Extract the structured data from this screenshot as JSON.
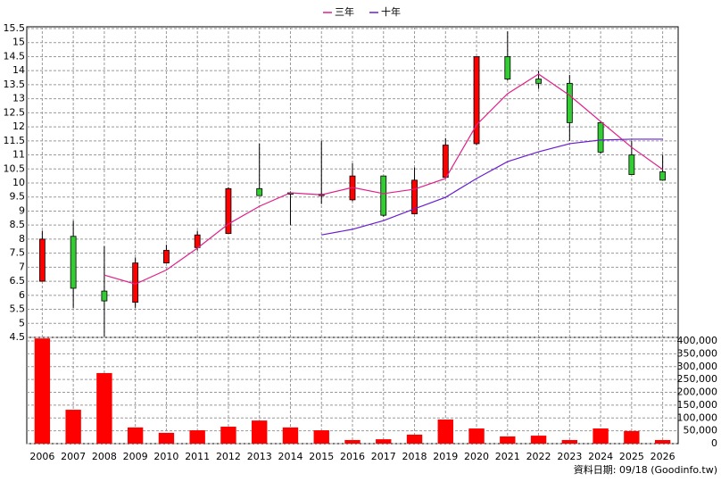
{
  "chart_data": {
    "type": "candlestick",
    "categories": [
      "2006",
      "2007",
      "2008",
      "2009",
      "2010",
      "2011",
      "2012",
      "2013",
      "2014",
      "2015",
      "2016",
      "2017",
      "2018",
      "2019",
      "2020",
      "2021",
      "2022",
      "2023",
      "2024",
      "2025",
      "2026"
    ],
    "open": [
      6.5,
      8.1,
      6.15,
      5.75,
      7.15,
      7.7,
      8.2,
      9.8,
      9.65,
      9.55,
      9.4,
      10.25,
      8.9,
      10.2,
      11.4,
      14.5,
      13.7,
      13.55,
      12.15,
      11.0,
      10.4
    ],
    "high": [
      8.3,
      8.65,
      7.75,
      7.35,
      7.8,
      8.3,
      9.85,
      11.4,
      9.7,
      11.5,
      10.7,
      10.25,
      10.55,
      11.6,
      14.5,
      15.4,
      14.0,
      13.85,
      12.2,
      11.5,
      11.0
    ],
    "low": [
      6.5,
      5.55,
      4.53,
      5.55,
      7.15,
      7.6,
      8.2,
      9.55,
      8.5,
      9.25,
      9.35,
      8.8,
      8.9,
      10.2,
      11.35,
      13.65,
      13.35,
      11.5,
      11.05,
      10.3,
      10.1
    ],
    "close": [
      8.0,
      6.25,
      5.8,
      7.15,
      7.6,
      8.15,
      9.8,
      9.55,
      9.6,
      9.6,
      10.25,
      8.85,
      10.1,
      11.35,
      14.5,
      13.7,
      13.55,
      12.15,
      11.1,
      10.3,
      10.1
    ],
    "up_color": "#ff0000",
    "down_color": "#33cc33",
    "series": [
      {
        "name": "三年",
        "color": "#e0208a",
        "values": [
          null,
          null,
          6.72,
          6.4,
          6.9,
          7.68,
          8.54,
          9.17,
          9.65,
          9.58,
          9.84,
          9.62,
          9.78,
          10.16,
          12.07,
          13.18,
          13.88,
          13.12,
          12.19,
          11.27,
          10.48
        ]
      },
      {
        "name": "十年",
        "color": "#6a1ed0",
        "values": [
          null,
          null,
          null,
          null,
          null,
          null,
          null,
          null,
          null,
          8.15,
          8.35,
          8.66,
          9.08,
          9.49,
          10.16,
          10.76,
          11.11,
          11.4,
          11.53,
          11.56,
          11.56
        ]
      }
    ],
    "ylim": [
      4.5,
      15.5
    ],
    "yticks": [
      4.5,
      5,
      5.5,
      6,
      6.5,
      7,
      7.5,
      8,
      8.5,
      9,
      9.5,
      10,
      10.5,
      11,
      11.5,
      12,
      12.5,
      13,
      13.5,
      14,
      14.5,
      15,
      15.5
    ],
    "volume": {
      "color": "#ff0000",
      "values": [
        410000,
        132000,
        275000,
        63000,
        42000,
        52000,
        66000,
        90000,
        63000,
        52000,
        14000,
        17000,
        35000,
        94000,
        59000,
        28000,
        31000,
        14000,
        59000,
        49000,
        14000
      ],
      "ylim": [
        0,
        414000
      ],
      "yticks": [
        0,
        {
          "value": 50000,
          "label": "50,000"
        },
        {
          "value": 100000,
          "label": "100,000"
        },
        {
          "value": 150000,
          "label": "150,000"
        },
        {
          "value": 200000,
          "label": "200,000"
        },
        {
          "value": 250000,
          "label": "250,000"
        },
        {
          "value": 300000,
          "label": "300,000"
        },
        {
          "value": 350000,
          "label": "350,000"
        },
        {
          "value": 400000,
          "label": "400,000"
        }
      ]
    },
    "grid": true,
    "footer": "資料日期: 09/18 (Goodinfo.tw)"
  }
}
